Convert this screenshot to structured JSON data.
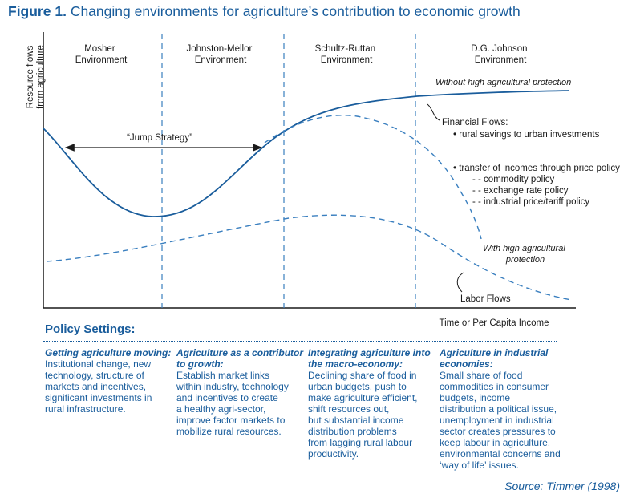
{
  "figure": {
    "label": "Figure 1.",
    "title": "Changing environments for agriculture’s contribution to economic growth"
  },
  "chart_data": {
    "type": "line",
    "ylabel_lines": [
      "Resource flows",
      "from agriculture"
    ],
    "xlabel": "Time or Per Capita Income",
    "environments": [
      {
        "lines": [
          "Mosher",
          "Environment"
        ]
      },
      {
        "lines": [
          "Johnston-Mellor",
          "Environment"
        ]
      },
      {
        "lines": [
          "Schultz-Ruttan",
          "Environment"
        ]
      },
      {
        "lines": [
          "D.G. Johnson",
          "Environment"
        ]
      }
    ],
    "series": [
      {
        "name": "Without high agricultural protection",
        "style": "solid"
      },
      {
        "name": "With high agricultural protection",
        "style": "dashed"
      },
      {
        "name": "Labor Flows",
        "style": "dashed"
      }
    ],
    "annotations": {
      "jump_strategy": "“Jump Strategy”",
      "without_protection": "Without high agricultural protection",
      "with_protection_lines": [
        "With high agricultural",
        "protection"
      ],
      "labor_flows": "Labor Flows",
      "financial_flows": "Financial Flows:",
      "flow_items": [
        "• rural savings to urban investments",
        "• transfer of incomes through price policy",
        "- - commodity policy",
        "- - exchange rate policy",
        "- - industrial price/tariff policy"
      ]
    },
    "colors": {
      "curve": "#1a5d9c",
      "axis": "#1a1a1a",
      "text_accent": "#1a5d9c"
    }
  },
  "policy": {
    "heading": "Policy Settings:",
    "columns": [
      {
        "heading_lines": [
          "Getting agriculture moving:"
        ],
        "body_lines": [
          "Institutional change, new",
          "technology, structure of",
          "markets and incentives,",
          "significant investments in",
          "rural infrastructure."
        ]
      },
      {
        "heading_lines": [
          "Agriculture as a contributor",
          "to growth:"
        ],
        "body_lines": [
          "Establish market links",
          "within industry, technology",
          "and incentives to create",
          "a healthy agri-sector,",
          "improve factor markets to",
          "mobilize rural resources."
        ]
      },
      {
        "heading_lines": [
          "Integrating agriculture into",
          "the macro-economy:"
        ],
        "body_lines": [
          "Declining share of food in",
          "urban budgets, push to",
          "make agriculture efficient,",
          "shift resources out,",
          "but substantial income",
          "distribution problems",
          "from lagging rural labour",
          "productivity."
        ]
      },
      {
        "heading_lines": [
          "Agriculture in industrial",
          "economies:"
        ],
        "body_lines": [
          "Small share of food",
          "commodities in consumer",
          "budgets, income",
          "distribution a political issue,",
          "unemployment in industrial",
          "sector creates pressures to",
          "keep labour in agriculture,",
          "environmental concerns and",
          "‘way of life’ issues."
        ]
      }
    ]
  },
  "source": "Source: Timmer (1998)"
}
